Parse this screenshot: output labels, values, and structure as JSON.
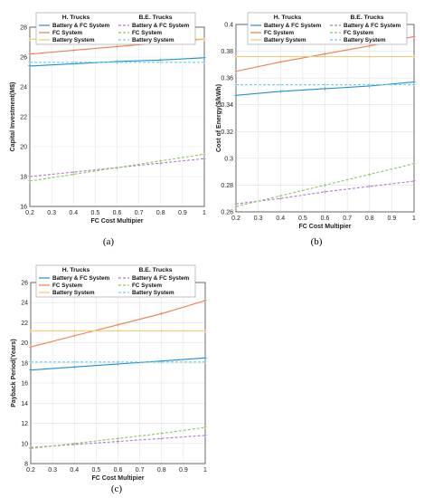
{
  "chart_data": [
    {
      "type": "line",
      "panel_label": "(a)",
      "xlabel": "FC Cost Multipier",
      "ylabel": "Capital Investment(M$)",
      "xlim": [
        0.2,
        1
      ],
      "ylim": [
        16,
        28
      ],
      "x_ticks": [
        "0.2",
        "0.3",
        "0.4",
        "0.5",
        "0.6",
        "0.7",
        "0.8",
        "0.9",
        "1"
      ],
      "y_ticks": [
        "16",
        "18",
        "20",
        "22",
        "24",
        "26",
        "28"
      ],
      "grid": true,
      "legend": {
        "placement": "top",
        "group_titles": [
          "H. Trucks",
          "B.E. Trucks"
        ],
        "entries": [
          "Battery & FC System",
          "FC System",
          "Battery System",
          "Battery & FC System",
          "FC System",
          "Battery System"
        ]
      },
      "x": [
        0.2,
        0.4,
        0.6,
        0.8,
        1.0
      ],
      "series": [
        {
          "name": "Battery & FC System",
          "group": "H. Trucks",
          "color": "#1f8fd0",
          "dash": false,
          "values": [
            25.4,
            25.55,
            25.7,
            25.8,
            25.95
          ]
        },
        {
          "name": "FC System",
          "group": "H. Trucks",
          "color": "#f07d4e",
          "dash": false,
          "values": [
            26.2,
            26.45,
            26.7,
            26.95,
            27.2
          ]
        },
        {
          "name": "Battery System",
          "group": "H. Trucks",
          "color": "#f5c86e",
          "dash": false,
          "values": [
            27.2,
            27.2,
            27.2,
            27.2,
            27.2
          ]
        },
        {
          "name": "Battery & FC System",
          "group": "B.E. Trucks",
          "color": "#b07cc6",
          "dash": true,
          "values": [
            18.0,
            18.3,
            18.6,
            18.9,
            19.2
          ]
        },
        {
          "name": "FC System",
          "group": "B.E. Trucks",
          "color": "#8cc560",
          "dash": true,
          "values": [
            17.7,
            18.15,
            18.6,
            19.05,
            19.5
          ]
        },
        {
          "name": "Battery System",
          "group": "B.E. Trucks",
          "color": "#6cd0e8",
          "dash": true,
          "values": [
            25.65,
            25.65,
            25.65,
            25.65,
            25.65
          ]
        }
      ]
    },
    {
      "type": "line",
      "panel_label": "(b)",
      "xlabel": "FC Cost Multipier",
      "ylabel": "Cost of Energy($/kWh)",
      "xlim": [
        0.2,
        1
      ],
      "ylim": [
        0.26,
        0.4
      ],
      "x_ticks": [
        "0.2",
        "0.3",
        "0.4",
        "0.5",
        "0.6",
        "0.7",
        "0.8",
        "0.9",
        "1"
      ],
      "y_ticks": [
        "0.26",
        "0.28",
        "0.3",
        "0.32",
        "0.34",
        "0.36",
        "0.38",
        "0.4"
      ],
      "grid": true,
      "legend": {
        "placement": "top",
        "group_titles": [
          "H. Trucks",
          "B.E. Trucks"
        ],
        "entries": [
          "Battery & FC System",
          "FC System",
          "Battery System",
          "Battery & FC System",
          "FC System",
          "Battery System"
        ]
      },
      "x": [
        0.2,
        0.4,
        0.6,
        0.8,
        1.0
      ],
      "series": [
        {
          "name": "Battery & FC System",
          "group": "H. Trucks",
          "color": "#1f8fd0",
          "dash": false,
          "values": [
            0.347,
            0.35,
            0.352,
            0.354,
            0.357
          ]
        },
        {
          "name": "FC System",
          "group": "H. Trucks",
          "color": "#f07d4e",
          "dash": false,
          "values": [
            0.365,
            0.372,
            0.378,
            0.384,
            0.391
          ]
        },
        {
          "name": "Battery System",
          "group": "H. Trucks",
          "color": "#f5c86e",
          "dash": false,
          "values": [
            0.376,
            0.376,
            0.376,
            0.376,
            0.376
          ]
        },
        {
          "name": "Battery & FC System",
          "group": "B.E. Trucks",
          "color": "#b07cc6",
          "dash": true,
          "values": [
            0.266,
            0.27,
            0.275,
            0.279,
            0.283
          ]
        },
        {
          "name": "FC System",
          "group": "B.E. Trucks",
          "color": "#8cc560",
          "dash": true,
          "values": [
            0.264,
            0.272,
            0.28,
            0.288,
            0.296
          ]
        },
        {
          "name": "Battery System",
          "group": "B.E. Trucks",
          "color": "#6cd0e8",
          "dash": true,
          "values": [
            0.355,
            0.355,
            0.355,
            0.355,
            0.355
          ]
        }
      ]
    },
    {
      "type": "line",
      "panel_label": "(c)",
      "xlabel": "FC Cost Multipier",
      "ylabel": "Payback Period(Years)",
      "xlim": [
        0.2,
        1
      ],
      "ylim": [
        8,
        26
      ],
      "x_ticks": [
        "0.2",
        "0.3",
        "0.4",
        "0.5",
        "0.6",
        "0.7",
        "0.8",
        "0.9",
        "1"
      ],
      "y_ticks": [
        "8",
        "10",
        "12",
        "14",
        "16",
        "18",
        "20",
        "22",
        "24",
        "26"
      ],
      "grid": true,
      "legend": {
        "placement": "top",
        "group_titles": [
          "H. Trucks",
          "B.E. Trucks"
        ],
        "entries": [
          "Battery & FC System",
          "FC System",
          "Battery System",
          "Battery & FC System",
          "FC System",
          "Battery System"
        ]
      },
      "x": [
        0.2,
        0.4,
        0.6,
        0.8,
        1.0
      ],
      "series": [
        {
          "name": "Battery & FC System",
          "group": "H. Trucks",
          "color": "#1f8fd0",
          "dash": false,
          "values": [
            17.3,
            17.6,
            17.9,
            18.2,
            18.5
          ]
        },
        {
          "name": "FC System",
          "group": "H. Trucks",
          "color": "#f07d4e",
          "dash": false,
          "values": [
            19.6,
            20.7,
            21.8,
            22.9,
            24.2
          ]
        },
        {
          "name": "Battery System",
          "group": "H. Trucks",
          "color": "#f5c86e",
          "dash": false,
          "values": [
            21.2,
            21.2,
            21.2,
            21.2,
            21.2
          ]
        },
        {
          "name": "Battery & FC System",
          "group": "B.E. Trucks",
          "color": "#b07cc6",
          "dash": true,
          "values": [
            9.6,
            9.9,
            10.2,
            10.5,
            10.8
          ]
        },
        {
          "name": "FC System",
          "group": "B.E. Trucks",
          "color": "#8cc560",
          "dash": true,
          "values": [
            9.5,
            10.0,
            10.5,
            11.0,
            11.6
          ]
        },
        {
          "name": "Battery System",
          "group": "B.E. Trucks",
          "color": "#6cd0e8",
          "dash": true,
          "values": [
            18.1,
            18.1,
            18.1,
            18.1,
            18.1
          ]
        }
      ]
    }
  ]
}
